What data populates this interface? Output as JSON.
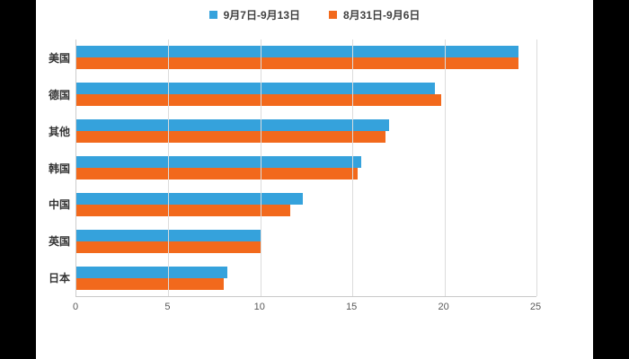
{
  "chart_data": {
    "type": "bar",
    "orientation": "horizontal",
    "title": "",
    "categories": [
      "美国",
      "德国",
      "其他",
      "韩国",
      "中国",
      "英国",
      "日本"
    ],
    "series": [
      {
        "name": "9月7日-9月13日",
        "color": "#35A2DC",
        "values": [
          24,
          19.5,
          17,
          15.5,
          12.3,
          10,
          8.2
        ]
      },
      {
        "name": "8月31日-9月6日",
        "color": "#F2691C",
        "values": [
          24,
          19.8,
          16.8,
          15.3,
          11.6,
          10,
          8
        ]
      }
    ],
    "xlim": [
      0,
      25
    ],
    "xticks": [
      0,
      5,
      10,
      15,
      20,
      25
    ],
    "grid": true,
    "legend_position": "top"
  },
  "colors": {
    "page_background": "#000000",
    "panel_background": "#ffffff",
    "gridline": "#dcdcdc",
    "axis_line": "#cccccc",
    "category_label": "#333333",
    "tick_label": "#595959",
    "legend_text": "#404040"
  }
}
